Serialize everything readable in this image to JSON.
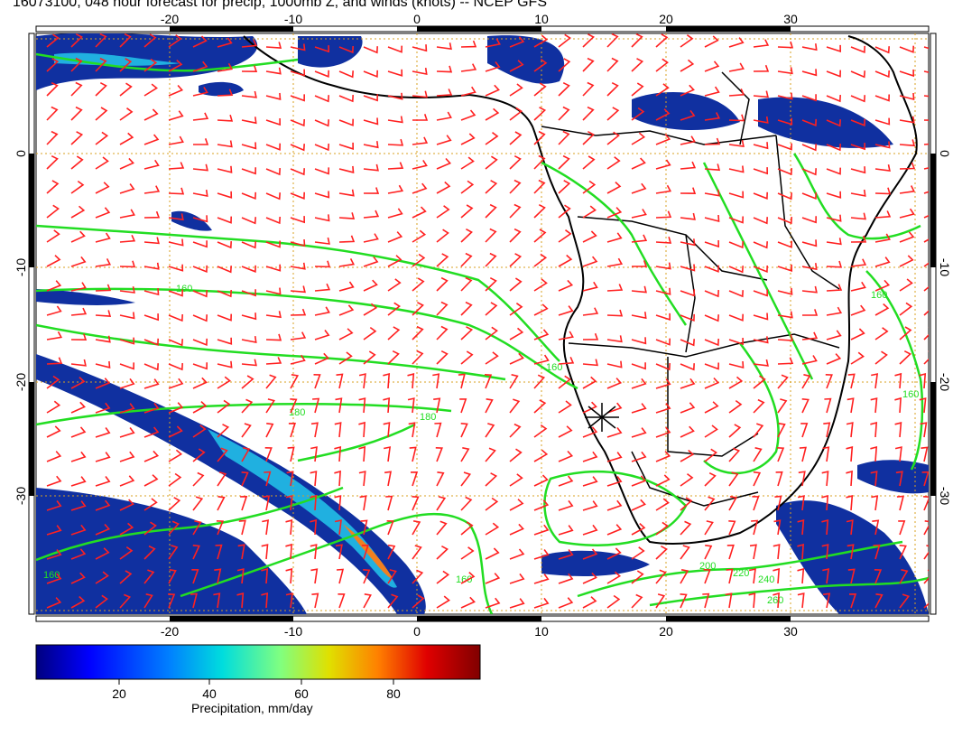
{
  "title": "16073100, 048 hour forecast for precip, 1000mb Z, and winds (knots) -- NCEP GFS",
  "map": {
    "lon_range": [
      -30,
      42
    ],
    "lat_range": [
      -41,
      10
    ],
    "lon_ticks": [
      "-20",
      "-10",
      "0",
      "10",
      "20",
      "30"
    ],
    "lat_ticks": [
      "0",
      "-10",
      "-20",
      "-30"
    ],
    "grid": "dotted orange graticule every 10 degrees",
    "station_marker": "x"
  },
  "contour_labels": [
    "160",
    "160",
    "180",
    "180",
    "160",
    "200",
    "220",
    "240",
    "260",
    "160",
    "160",
    "160"
  ],
  "colorbar": {
    "ticks": [
      "20",
      "40",
      "60",
      "80"
    ],
    "label": "Precipitation, mm/day",
    "range": [
      0,
      100
    ],
    "colors": [
      "#00007f",
      "#0000ff",
      "#0080ff",
      "#00dddd",
      "#80ff80",
      "#e0e000",
      "#ff8000",
      "#e00000",
      "#800000"
    ]
  },
  "colors": {
    "contour": "#22dd22",
    "wind_barbs": "#ff2020",
    "coastline": "#000000",
    "precip_base": "#1030a0"
  }
}
